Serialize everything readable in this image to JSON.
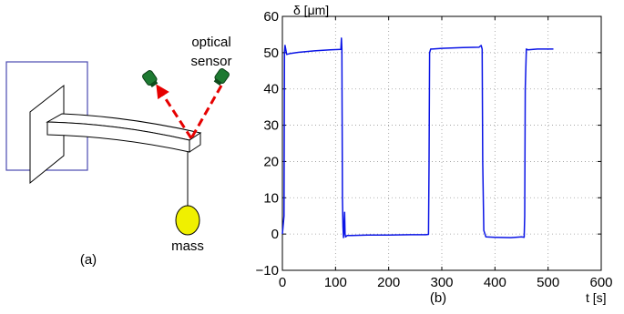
{
  "panel_a": {
    "label": "(a)",
    "sensor_label_line1": "optical",
    "sensor_label_line2": "sensor",
    "mass_label": "mass"
  },
  "panel_b": {
    "label": "(b)"
  },
  "colors": {
    "trace": "#0a14e6",
    "laser": "#e60000",
    "sensor": "#1e7a32",
    "mass": "#f0f000",
    "wall": "#4a4ab0"
  },
  "chart_data": {
    "type": "line",
    "title": "",
    "xlabel": "t [s]",
    "ylabel": "δ [μm]",
    "xlim": [
      0,
      600
    ],
    "ylim": [
      -10,
      60
    ],
    "xticks": [
      "0",
      "100",
      "200",
      "300",
      "400",
      "500",
      "600"
    ],
    "yticks": [
      "−10",
      "0",
      "10",
      "20",
      "30",
      "40",
      "50",
      "60"
    ],
    "grid": true,
    "series": [
      {
        "x": [
          0,
          3,
          4,
          5,
          8,
          15,
          30,
          60,
          90,
          110,
          111,
          112,
          113,
          114,
          115,
          117,
          118,
          119,
          122,
          130,
          160,
          200,
          240,
          270,
          275,
          276,
          277,
          279,
          282,
          300,
          340,
          370,
          374,
          376,
          377,
          379,
          383,
          400,
          430,
          450,
          455,
          456,
          457,
          459,
          462,
          480,
          500,
          510
        ],
        "y": [
          0,
          5,
          50,
          52,
          49.5,
          49.8,
          50.1,
          50.5,
          50.8,
          50.9,
          54,
          51,
          10,
          2,
          -1,
          6,
          0,
          -0.8,
          -0.4,
          -0.4,
          -0.3,
          -0.3,
          -0.2,
          -0.2,
          -0.1,
          20,
          50,
          51,
          51,
          51.2,
          51.4,
          51.5,
          52,
          51,
          20,
          1,
          -0.8,
          -0.9,
          -1,
          -0.8,
          -0.9,
          5,
          40,
          51,
          50.8,
          51,
          51,
          51
        ]
      }
    ]
  }
}
